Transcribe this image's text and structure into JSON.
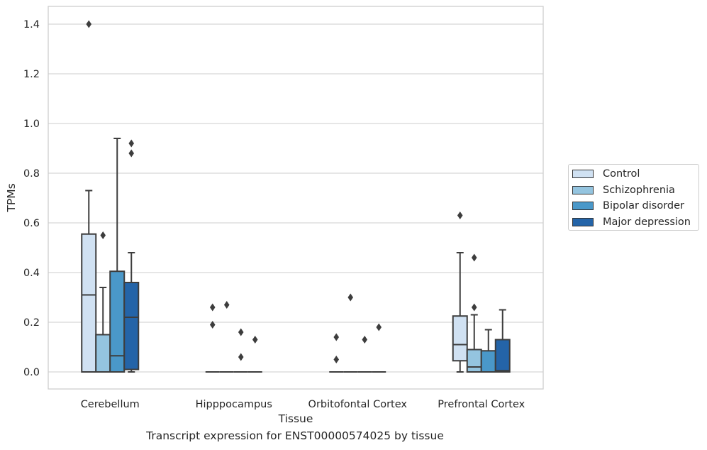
{
  "chart_data": {
    "type": "box",
    "caption": "Transcript expression for ENST00000574025 by tissue",
    "xlabel": "Tissue",
    "ylabel": "TPMs",
    "ylim": [
      -0.065,
      1.47
    ],
    "yticks": [
      "0.0",
      "0.2",
      "0.4",
      "0.6",
      "0.8",
      "1.0",
      "1.2",
      "1.4"
    ],
    "grid": "horizontal",
    "legend_position": "right",
    "categories": [
      "Cerebellum",
      "Hipppocampus",
      "Orbitofontal Cortex",
      "Prefrontal Cortex"
    ],
    "series": [
      {
        "name": "Control",
        "color": "#d0e1f2",
        "boxes": [
          {
            "whislo": 0,
            "q1": 0,
            "med": 0.31,
            "q3": 0.555,
            "whishi": 0.73,
            "fliers": [
              1.4
            ]
          },
          {
            "whislo": 0,
            "q1": 0,
            "med": 0,
            "q3": 0,
            "whishi": 0,
            "fliers": [
              0.19,
              0.26
            ]
          },
          {
            "whislo": 0,
            "q1": 0,
            "med": 0,
            "q3": 0,
            "whishi": 0,
            "fliers": [
              0.05,
              0.14
            ]
          },
          {
            "whislo": 0,
            "q1": 0.045,
            "med": 0.11,
            "q3": 0.225,
            "whishi": 0.48,
            "fliers": [
              0.63
            ]
          }
        ]
      },
      {
        "name": "Schizophrenia",
        "color": "#94c4df",
        "boxes": [
          {
            "whislo": 0,
            "q1": 0,
            "med": 0,
            "q3": 0.15,
            "whishi": 0.34,
            "fliers": [
              0.55
            ]
          },
          {
            "whislo": 0,
            "q1": 0,
            "med": 0,
            "q3": 0,
            "whishi": 0,
            "fliers": [
              0.27
            ]
          },
          {
            "whislo": 0,
            "q1": 0,
            "med": 0,
            "q3": 0,
            "whishi": 0,
            "fliers": [
              0.3
            ]
          },
          {
            "whislo": 0,
            "q1": 0,
            "med": 0.02,
            "q3": 0.09,
            "whishi": 0.23,
            "fliers": [
              0.26,
              0.46
            ]
          }
        ]
      },
      {
        "name": "Bipolar disorder",
        "color": "#4a98c9",
        "boxes": [
          {
            "whislo": 0,
            "q1": 0,
            "med": 0.065,
            "q3": 0.405,
            "whishi": 0.94,
            "fliers": []
          },
          {
            "whislo": 0,
            "q1": 0,
            "med": 0,
            "q3": 0,
            "whishi": 0,
            "fliers": [
              0.06,
              0.16
            ]
          },
          {
            "whislo": 0,
            "q1": 0,
            "med": 0,
            "q3": 0,
            "whishi": 0,
            "fliers": [
              0.13
            ]
          },
          {
            "whislo": 0,
            "q1": 0,
            "med": 0,
            "q3": 0.085,
            "whishi": 0.17,
            "fliers": []
          }
        ]
      },
      {
        "name": "Major depression",
        "color": "#2464a8",
        "boxes": [
          {
            "whislo": 0,
            "q1": 0.01,
            "med": 0.22,
            "q3": 0.36,
            "whishi": 0.48,
            "fliers": [
              0.88,
              0.92
            ]
          },
          {
            "whislo": 0,
            "q1": 0,
            "med": 0,
            "q3": 0,
            "whishi": 0,
            "fliers": [
              0.13
            ]
          },
          {
            "whislo": 0,
            "q1": 0,
            "med": 0,
            "q3": 0,
            "whishi": 0,
            "fliers": [
              0.18
            ]
          },
          {
            "whislo": 0,
            "q1": 0,
            "med": 0.005,
            "q3": 0.13,
            "whishi": 0.25,
            "fliers": []
          }
        ]
      }
    ]
  }
}
